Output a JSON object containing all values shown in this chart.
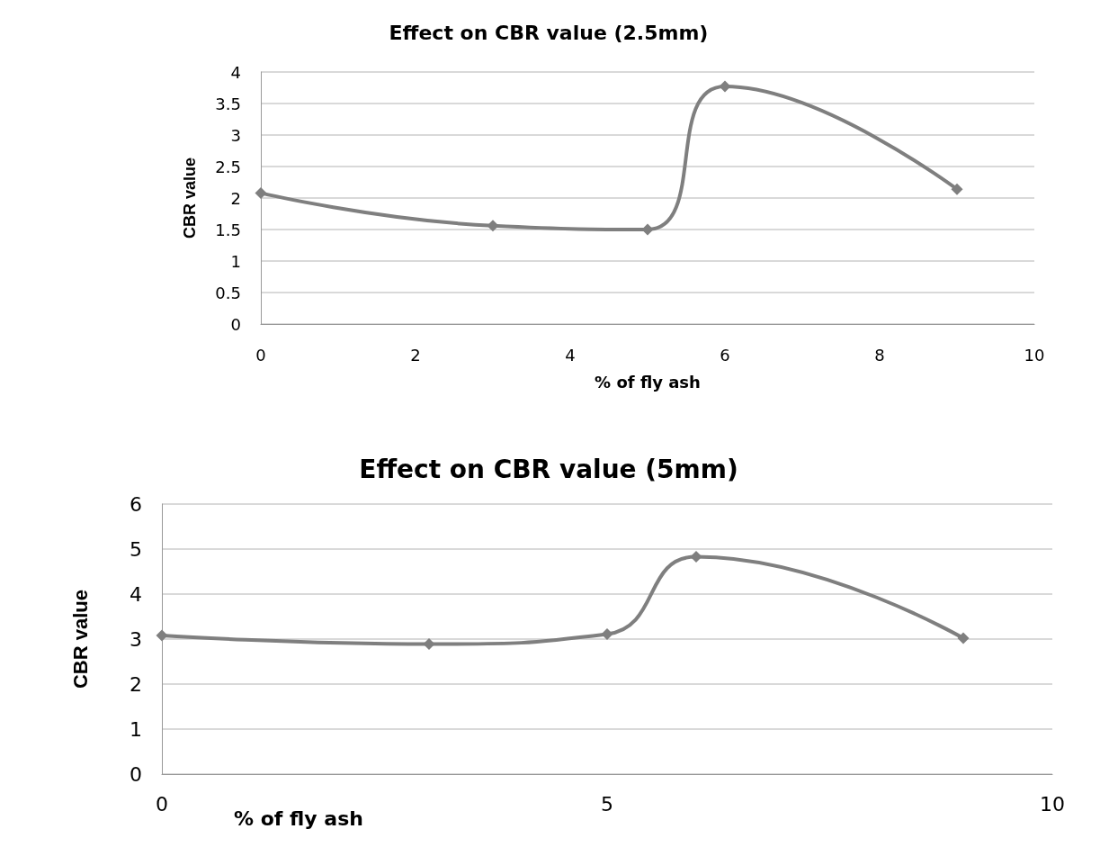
{
  "chart_data": [
    {
      "type": "line",
      "title": "Effect on CBR value (2.5mm)",
      "xlabel": "% of fly ash",
      "ylabel": "CBR value",
      "x": [
        0,
        3,
        5,
        6,
        9
      ],
      "series": [
        {
          "color": "#7f7f7f",
          "values": [
            2.08,
            1.56,
            1.5,
            3.77,
            2.14
          ]
        }
      ],
      "xlim": [
        0,
        10
      ],
      "xticks": [
        0,
        2,
        4,
        6,
        8,
        10
      ],
      "ylim": [
        0,
        4
      ],
      "yticks": [
        0,
        0.5,
        1,
        1.5,
        2,
        2.5,
        3,
        3.5,
        4
      ],
      "grid": "y",
      "marker": "diamond",
      "line_style": "solid"
    },
    {
      "type": "line",
      "title": "Effect on CBR value (5mm)",
      "xlabel": "% of fly ash",
      "ylabel": "CBR value",
      "x": [
        0,
        3,
        5,
        6,
        9
      ],
      "series": [
        {
          "color": "#7f7f7f",
          "values": [
            3.08,
            2.89,
            3.11,
            4.83,
            3.02
          ]
        }
      ],
      "xlim": [
        0,
        10
      ],
      "xticks": [
        0,
        5,
        10
      ],
      "ylim": [
        0,
        6
      ],
      "yticks": [
        0,
        1,
        2,
        3,
        4,
        5,
        6
      ],
      "grid": "y",
      "marker": "diamond",
      "line_style": "solid"
    }
  ]
}
